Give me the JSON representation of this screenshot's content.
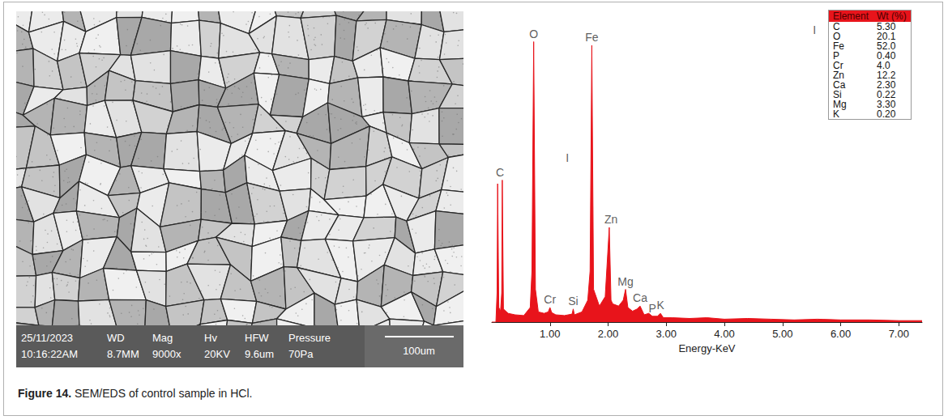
{
  "caption": {
    "label": "Figure 14.",
    "text": "SEM/EDS of control sample in HCl."
  },
  "sem_image": {
    "date": "25/11/2023",
    "time": "10:16:22AM",
    "fields": [
      {
        "label": "WD",
        "value": "8.7MM"
      },
      {
        "label": "Mag",
        "value": "9000x"
      },
      {
        "label": "Hv",
        "value": "20KV"
      },
      {
        "label": "HFW",
        "value": "9.6um"
      },
      {
        "label": "Pressure",
        "value": "70Pa"
      }
    ],
    "scale_bar": "100um"
  },
  "table": {
    "columns": [
      "Element",
      "Wt (%)"
    ],
    "rows": [
      [
        "C",
        "5.30"
      ],
      [
        "O",
        "20.1"
      ],
      [
        "Fe",
        "52.0"
      ],
      [
        "P",
        "0.40"
      ],
      [
        "Cr",
        "4.0"
      ],
      [
        "Zn",
        "12.2"
      ],
      [
        "Ca",
        "2.30"
      ],
      [
        "Si",
        "0.22"
      ],
      [
        "Mg",
        "3.30"
      ],
      [
        "K",
        "0.20"
      ]
    ]
  },
  "chart_data": {
    "type": "area",
    "x_label": "Energy-KeV",
    "color": "#e8141b",
    "tick_labels": "x",
    "grid": false,
    "x": [
      0.0,
      0.07,
      0.09,
      0.1,
      0.12,
      0.15,
      0.17,
      0.18,
      0.2,
      0.28,
      0.4,
      0.55,
      0.66,
      0.69,
      0.72,
      0.75,
      0.8,
      0.9,
      0.97,
      1.0,
      1.03,
      1.1,
      1.25,
      1.38,
      1.4,
      1.42,
      1.55,
      1.65,
      1.69,
      1.72,
      1.75,
      1.85,
      1.95,
      2.02,
      2.05,
      2.08,
      2.18,
      2.26,
      2.3,
      2.34,
      2.42,
      2.5,
      2.55,
      2.62,
      2.7,
      2.76,
      2.85,
      2.9,
      2.95,
      3.1,
      3.4,
      3.7,
      4.0,
      4.4,
      4.8,
      5.2,
      5.6,
      6.0,
      6.5,
      7.0,
      7.4
    ],
    "values": [
      0,
      0,
      40,
      190,
      20,
      15,
      40,
      195,
      18,
      12,
      10,
      9,
      20,
      70,
      385,
      45,
      14,
      12,
      14,
      20,
      13,
      10,
      9,
      11,
      18,
      10,
      14,
      30,
      70,
      380,
      45,
      22,
      35,
      130,
      30,
      25,
      22,
      30,
      45,
      20,
      15,
      18,
      22,
      10,
      12,
      8,
      8,
      12,
      6,
      6,
      5,
      6,
      4,
      5,
      4,
      3,
      4,
      3,
      3,
      2,
      2
    ],
    "xlim": [
      0,
      7.4
    ],
    "ylim": [
      0,
      420
    ],
    "xticks": [
      {
        "value": 1,
        "label": "1.00"
      },
      {
        "value": 2,
        "label": "2.00"
      },
      {
        "value": 3,
        "label": "3.00"
      },
      {
        "value": 4,
        "label": "4.00"
      },
      {
        "value": 5,
        "label": "5.00"
      },
      {
        "value": 6,
        "label": "6.00"
      },
      {
        "value": 7,
        "label": "7.00"
      }
    ],
    "annotations": [
      {
        "text": "C",
        "x": 0.14,
        "y": 195
      },
      {
        "text": "O",
        "x": 0.72,
        "y": 385
      },
      {
        "text": "Cr",
        "x": 1.0,
        "y": 20
      },
      {
        "text": "Si",
        "x": 1.4,
        "y": 18
      },
      {
        "text": "Fe",
        "x": 1.72,
        "y": 380
      },
      {
        "text": "Zn",
        "x": 2.05,
        "y": 130
      },
      {
        "text": "Mg",
        "x": 2.3,
        "y": 45
      },
      {
        "text": "Ca",
        "x": 2.55,
        "y": 22
      },
      {
        "text": "P",
        "x": 2.76,
        "y": 8
      },
      {
        "text": "K",
        "x": 2.9,
        "y": 12
      },
      {
        "text": "I",
        "x": 1.3,
        "y": 215
      },
      {
        "text": "I",
        "x": 5.55,
        "y": 390
      }
    ]
  }
}
